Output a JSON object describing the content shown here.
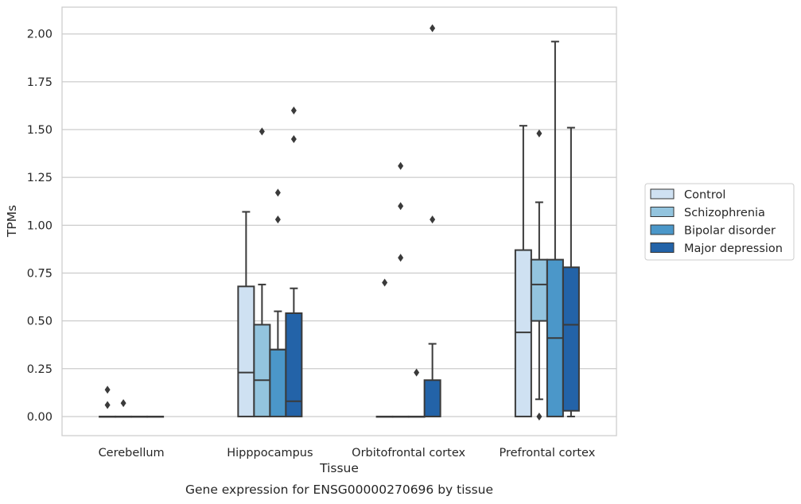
{
  "chart_data": {
    "type": "box",
    "title": "Gene expression for ENSG00000270696 by tissue",
    "xlabel": "Tissue",
    "ylabel": "TPMs",
    "ylim": [
      -0.1,
      2.14
    ],
    "yticks": [
      0.0,
      0.25,
      0.5,
      0.75,
      1.0,
      1.25,
      1.5,
      1.75,
      2.0
    ],
    "ytick_labels": [
      "0.00",
      "0.25",
      "0.50",
      "0.75",
      "1.00",
      "1.25",
      "1.50",
      "1.75",
      "2.00"
    ],
    "grid": "horizontal",
    "legend_position": "right",
    "categories": [
      "Cerebellum",
      "Hipppocampus",
      "Orbitofrontal cortex",
      "Prefrontal cortex"
    ],
    "series": [
      {
        "name": "Control",
        "color": "#cfe1f2",
        "boxes": [
          {
            "q1": 0.0,
            "median": 0.0,
            "q3": 0.0,
            "whislo": 0.0,
            "whishi": 0.0,
            "fliers": [
              0.14,
              0.06
            ]
          },
          {
            "q1": 0.0,
            "median": 0.23,
            "q3": 0.68,
            "whislo": 0.0,
            "whishi": 1.07,
            "fliers": []
          },
          {
            "q1": 0.0,
            "median": 0.0,
            "q3": 0.0,
            "whislo": 0.0,
            "whishi": 0.0,
            "fliers": [
              0.7
            ]
          },
          {
            "q1": 0.0,
            "median": 0.44,
            "q3": 0.87,
            "whislo": 0.0,
            "whishi": 1.52,
            "fliers": []
          }
        ]
      },
      {
        "name": "Schizophrenia",
        "color": "#93c4de",
        "boxes": [
          {
            "q1": 0.0,
            "median": 0.0,
            "q3": 0.0,
            "whislo": 0.0,
            "whishi": 0.0,
            "fliers": [
              0.07
            ]
          },
          {
            "q1": 0.0,
            "median": 0.19,
            "q3": 0.48,
            "whislo": 0.0,
            "whishi": 0.69,
            "fliers": [
              1.49
            ]
          },
          {
            "q1": 0.0,
            "median": 0.0,
            "q3": 0.0,
            "whislo": 0.0,
            "whishi": 0.0,
            "fliers": [
              1.31,
              1.1,
              0.83
            ]
          },
          {
            "q1": 0.5,
            "median": 0.69,
            "q3": 0.82,
            "whislo": 0.09,
            "whishi": 1.12,
            "fliers": [
              1.48,
              0.0
            ]
          }
        ]
      },
      {
        "name": "Bipolar disorder",
        "color": "#4b97c9",
        "boxes": [
          {
            "q1": 0.0,
            "median": 0.0,
            "q3": 0.0,
            "whislo": 0.0,
            "whishi": 0.0,
            "fliers": []
          },
          {
            "q1": 0.0,
            "median": 0.35,
            "q3": 0.35,
            "whislo": 0.0,
            "whishi": 0.55,
            "fliers": [
              1.17,
              1.03
            ]
          },
          {
            "q1": 0.0,
            "median": 0.0,
            "q3": 0.0,
            "whislo": 0.0,
            "whishi": 0.0,
            "fliers": [
              0.23
            ]
          },
          {
            "q1": 0.0,
            "median": 0.41,
            "q3": 0.82,
            "whislo": 0.0,
            "whishi": 1.96,
            "fliers": []
          }
        ]
      },
      {
        "name": "Major depression",
        "color": "#2363a8",
        "boxes": [
          {
            "q1": 0.0,
            "median": 0.0,
            "q3": 0.0,
            "whislo": 0.0,
            "whishi": 0.0,
            "fliers": []
          },
          {
            "q1": 0.0,
            "median": 0.08,
            "q3": 0.54,
            "whislo": 0.0,
            "whishi": 0.67,
            "fliers": [
              1.6,
              1.45
            ]
          },
          {
            "q1": 0.0,
            "median": 0.0,
            "q3": 0.19,
            "whislo": 0.0,
            "whishi": 0.38,
            "fliers": [
              2.03,
              1.03
            ]
          },
          {
            "q1": 0.03,
            "median": 0.48,
            "q3": 0.78,
            "whislo": 0.0,
            "whishi": 1.51,
            "fliers": []
          }
        ]
      }
    ]
  }
}
